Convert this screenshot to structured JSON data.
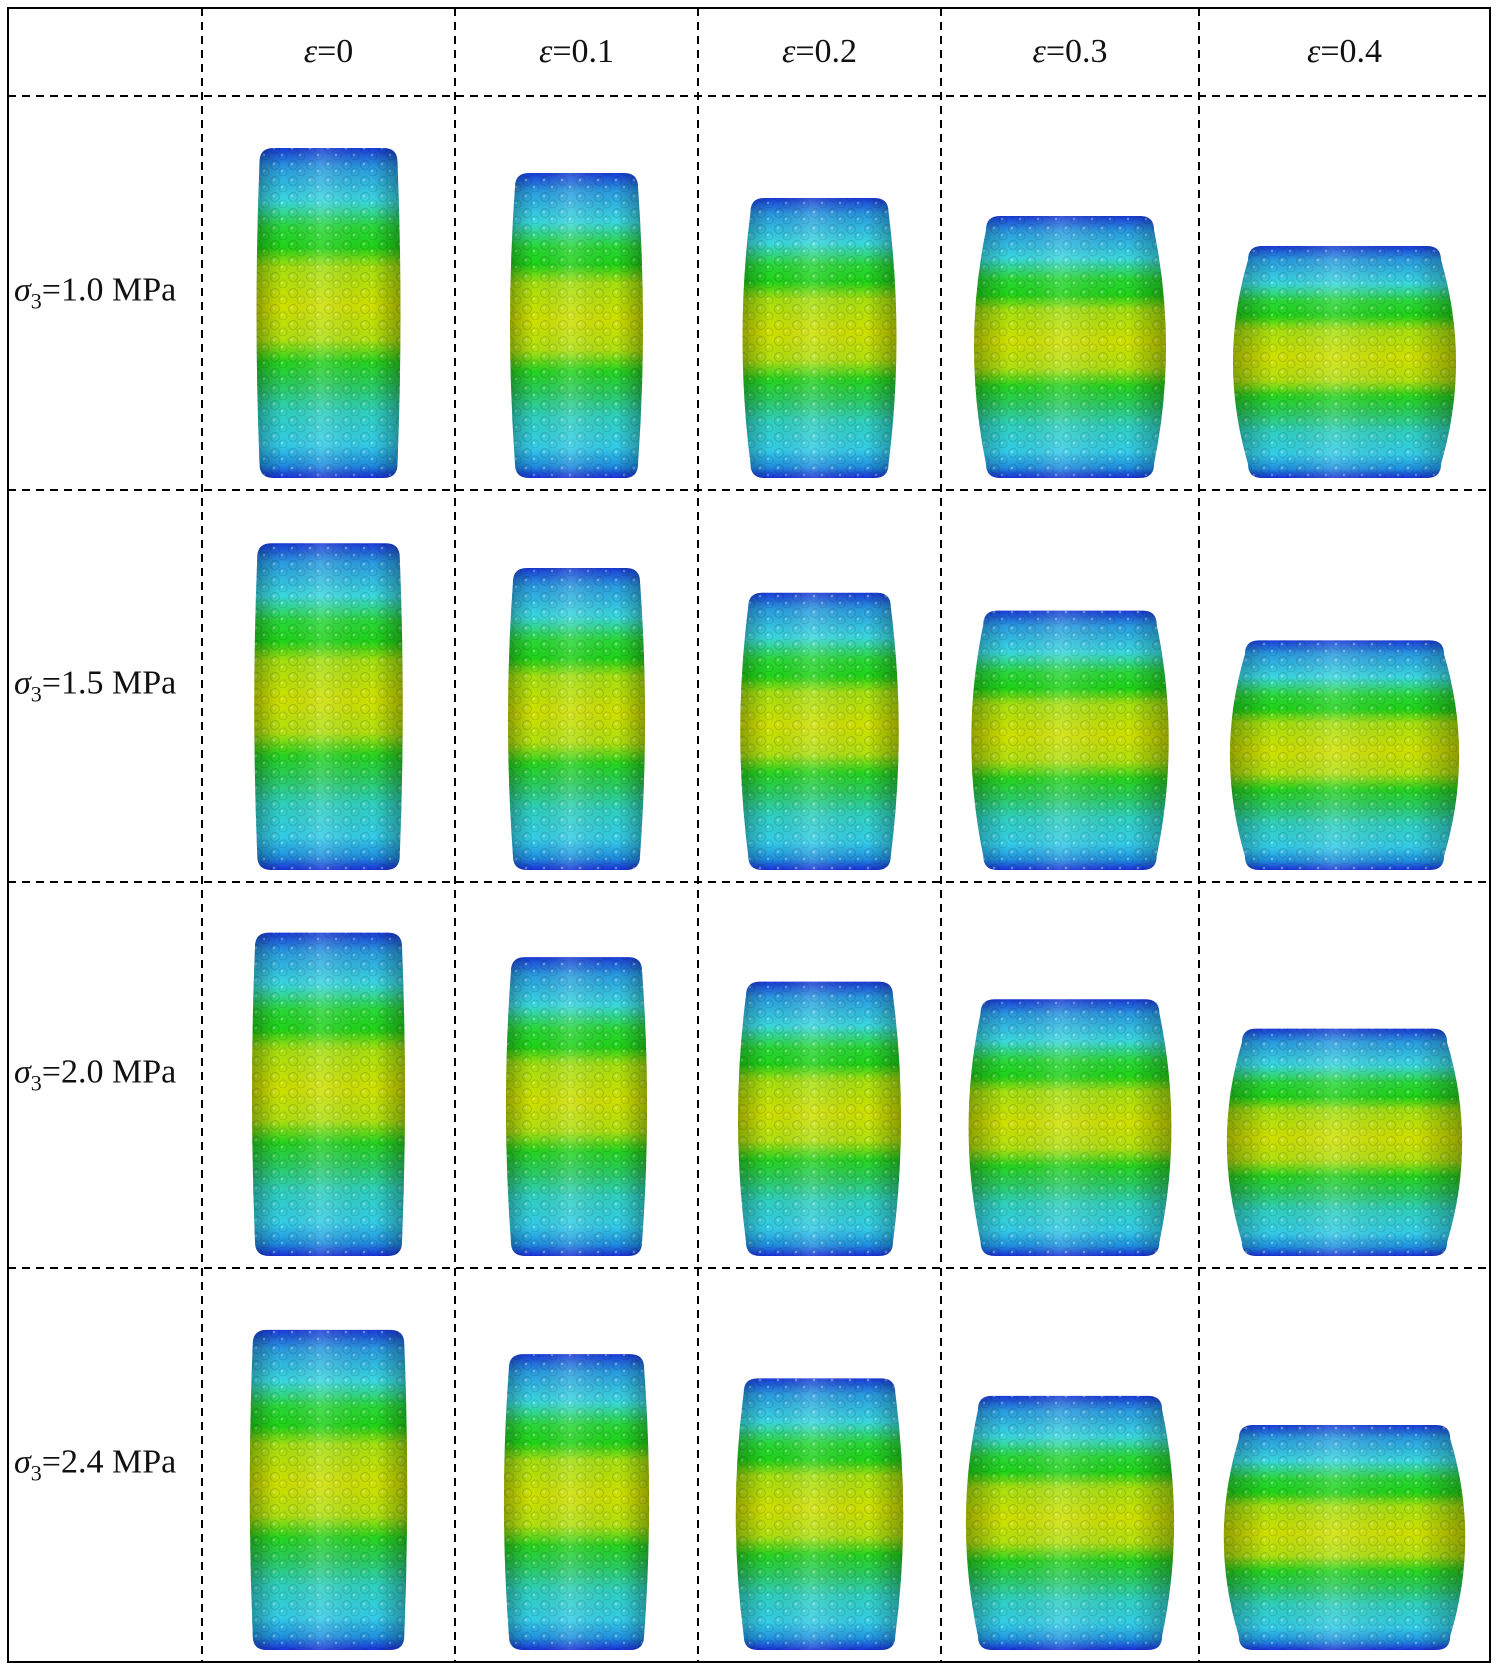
{
  "figure": {
    "column_headers": [
      {
        "symbol": "ε",
        "value": "=0"
      },
      {
        "symbol": "ε",
        "value": "=0.1"
      },
      {
        "symbol": "ε",
        "value": "=0.2"
      },
      {
        "symbol": "ε",
        "value": "=0.3"
      },
      {
        "symbol": "ε",
        "value": "=0.4"
      }
    ],
    "row_headers": [
      {
        "symbol": "σ",
        "subscript": "3",
        "value": "=1.0 MPa"
      },
      {
        "symbol": "σ",
        "subscript": "3",
        "value": "=1.5 MPa"
      },
      {
        "symbol": "σ",
        "subscript": "3",
        "value": "=2.0 MPa"
      },
      {
        "symbol": "σ",
        "subscript": "3",
        "value": "=2.4 MPa"
      }
    ],
    "colors": {
      "band_yellow": "#c8e000",
      "band_green": "#28d820",
      "band_cyan": "#20d0e0",
      "band_blue": "#1040e8",
      "grid_line": "#000000"
    }
  }
}
